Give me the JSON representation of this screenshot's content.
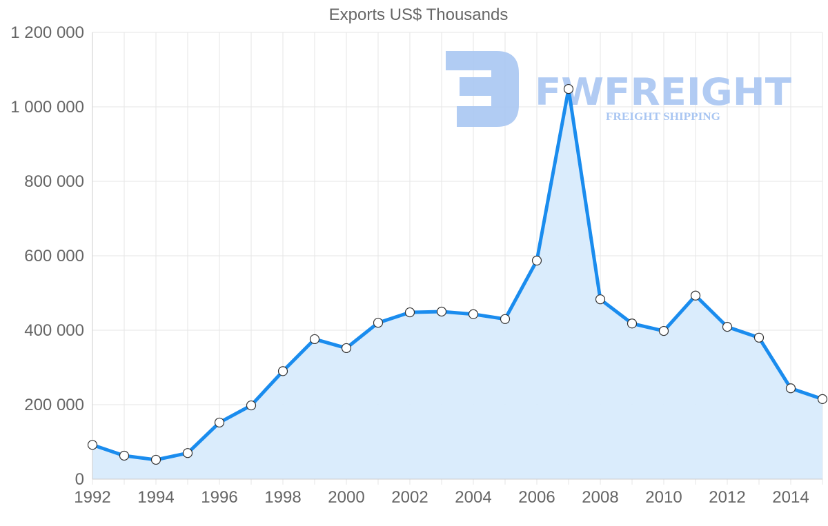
{
  "chart_data": {
    "type": "area",
    "title": "Exports US$ Thousands",
    "xlabel": "",
    "ylabel": "",
    "x": [
      1992,
      1993,
      1994,
      1995,
      1996,
      1997,
      1998,
      1999,
      2000,
      2001,
      2002,
      2003,
      2004,
      2005,
      2006,
      2007,
      2008,
      2009,
      2010,
      2011,
      2012,
      2013,
      2014,
      2015
    ],
    "series": [
      {
        "name": "Exports US$ Thousands",
        "values": [
          92000,
          63000,
          52000,
          70000,
          152000,
          198000,
          290000,
          376000,
          352000,
          420000,
          448000,
          450000,
          443000,
          430000,
          587000,
          1048000,
          483000,
          418000,
          398000,
          493000,
          409000,
          380000,
          244000,
          215000
        ]
      }
    ],
    "ylim": [
      0,
      1200000
    ],
    "xlim": [
      1992,
      2015
    ],
    "yticks": [
      "0",
      "200 000",
      "400 000",
      "600 000",
      "800 000",
      "1 000 000",
      "1 200 000"
    ],
    "ytick_values": [
      0,
      200000,
      400000,
      600000,
      800000,
      1000000,
      1200000
    ],
    "xticks": [
      "1992",
      "1994",
      "1996",
      "1998",
      "2000",
      "2002",
      "2004",
      "2006",
      "2008",
      "2010",
      "2012",
      "2014"
    ],
    "grid": true,
    "legend": "none",
    "colors": {
      "line": "#1a8cee",
      "fill": "#d8ebfc",
      "point_fill": "#ffffff",
      "point_stroke": "#333333"
    }
  },
  "watermark": {
    "brand": "FWFREIGHT",
    "tagline": "FREIGHT SHIPPING",
    "color": "#a9c6f2"
  }
}
